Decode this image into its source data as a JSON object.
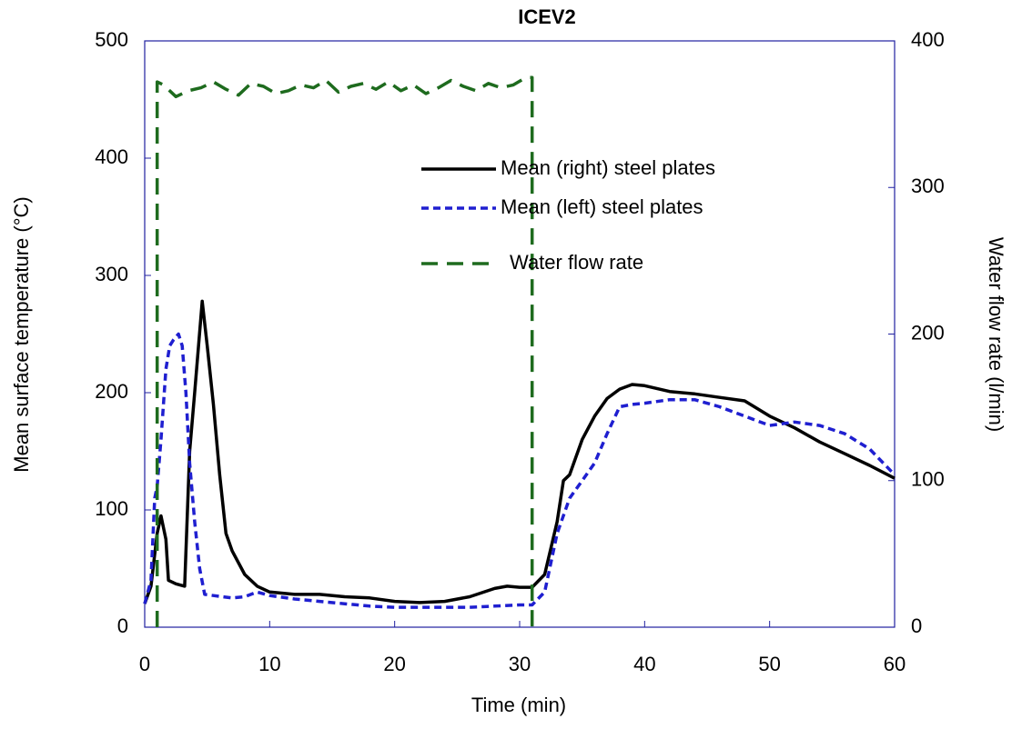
{
  "chart_data": {
    "type": "line",
    "title": "ICEV2",
    "xlabel": "Time (min)",
    "ylabel": "Mean surface temperature (°C)",
    "y2label": "Water flow rate (l/min)",
    "xlim": [
      0,
      60
    ],
    "xticks": [
      0,
      10,
      20,
      30,
      40,
      50,
      60
    ],
    "ylim": [
      0,
      500
    ],
    "yticks": [
      0,
      100,
      200,
      300,
      400,
      500
    ],
    "y2lim": [
      0,
      400
    ],
    "y2ticks": [
      0,
      100,
      200,
      300,
      400
    ],
    "series": [
      {
        "name": "Mean (right) steel plates",
        "color": "#000000",
        "linestyle": "solid",
        "x": [
          0,
          0.5,
          1,
          1.3,
          1.7,
          1.9,
          2.5,
          3.2,
          3.6,
          4,
          4.6,
          5,
          5.5,
          6,
          6.5,
          7,
          8,
          9,
          10,
          12,
          14,
          16,
          18,
          20,
          22,
          24,
          26,
          28,
          29,
          30,
          31,
          32,
          33,
          33.5,
          34,
          35,
          36,
          37,
          38,
          39,
          40,
          42,
          44,
          46,
          48,
          50,
          52,
          54,
          56,
          58,
          60
        ],
        "values": [
          20,
          35,
          80,
          95,
          75,
          40,
          37,
          35,
          150,
          200,
          278,
          240,
          190,
          130,
          80,
          65,
          45,
          35,
          30,
          28,
          28,
          26,
          25,
          22,
          21,
          22,
          26,
          33,
          35,
          34,
          34,
          45,
          90,
          125,
          130,
          160,
          180,
          195,
          203,
          207,
          206,
          201,
          199,
          196,
          193,
          180,
          170,
          158,
          148,
          138,
          127
        ]
      },
      {
        "name": "Mean (left) steel plates",
        "color": "#1f1fd0",
        "linestyle": "dotted",
        "x": [
          0,
          0.5,
          0.8,
          1,
          1.3,
          1.7,
          2,
          2.3,
          2.7,
          3,
          3.3,
          3.6,
          4,
          4.4,
          4.8,
          5.5,
          7,
          8,
          9,
          10,
          12,
          14,
          16,
          18,
          20,
          22,
          24,
          26,
          28,
          30,
          31,
          32,
          33,
          34,
          35,
          36,
          37,
          38,
          39,
          40,
          42,
          44,
          46,
          48,
          50,
          52,
          54,
          56,
          58,
          60
        ],
        "values": [
          20,
          40,
          110,
          120,
          160,
          220,
          240,
          245,
          250,
          240,
          200,
          140,
          90,
          50,
          28,
          27,
          25,
          26,
          30,
          27,
          24,
          22,
          20,
          18,
          17,
          17,
          17,
          17,
          18,
          19,
          19,
          30,
          80,
          110,
          125,
          140,
          165,
          188,
          190,
          191,
          194,
          194,
          188,
          180,
          172,
          175,
          172,
          165,
          152,
          130
        ]
      },
      {
        "name": "Water flow rate",
        "color": "#1e6b1e",
        "linestyle": "dashed",
        "axis": "y2",
        "x": [
          1,
          1,
          1.5,
          2.5,
          3.5,
          4.5,
          5.5,
          6.5,
          7.5,
          8.5,
          9.5,
          10.5,
          11.5,
          12.5,
          13.5,
          14.5,
          15.5,
          16.5,
          17.5,
          18.5,
          19.5,
          20.5,
          21.5,
          22.5,
          23.5,
          24.5,
          25.5,
          26.5,
          27.5,
          28.5,
          29.5,
          30.5,
          31,
          31
        ],
        "values": [
          0,
          372,
          370,
          362,
          366,
          368,
          372,
          367,
          363,
          371,
          369,
          364,
          366,
          370,
          368,
          373,
          365,
          369,
          371,
          367,
          372,
          366,
          370,
          364,
          368,
          373,
          369,
          366,
          371,
          368,
          370,
          375,
          375,
          0
        ]
      }
    ]
  }
}
